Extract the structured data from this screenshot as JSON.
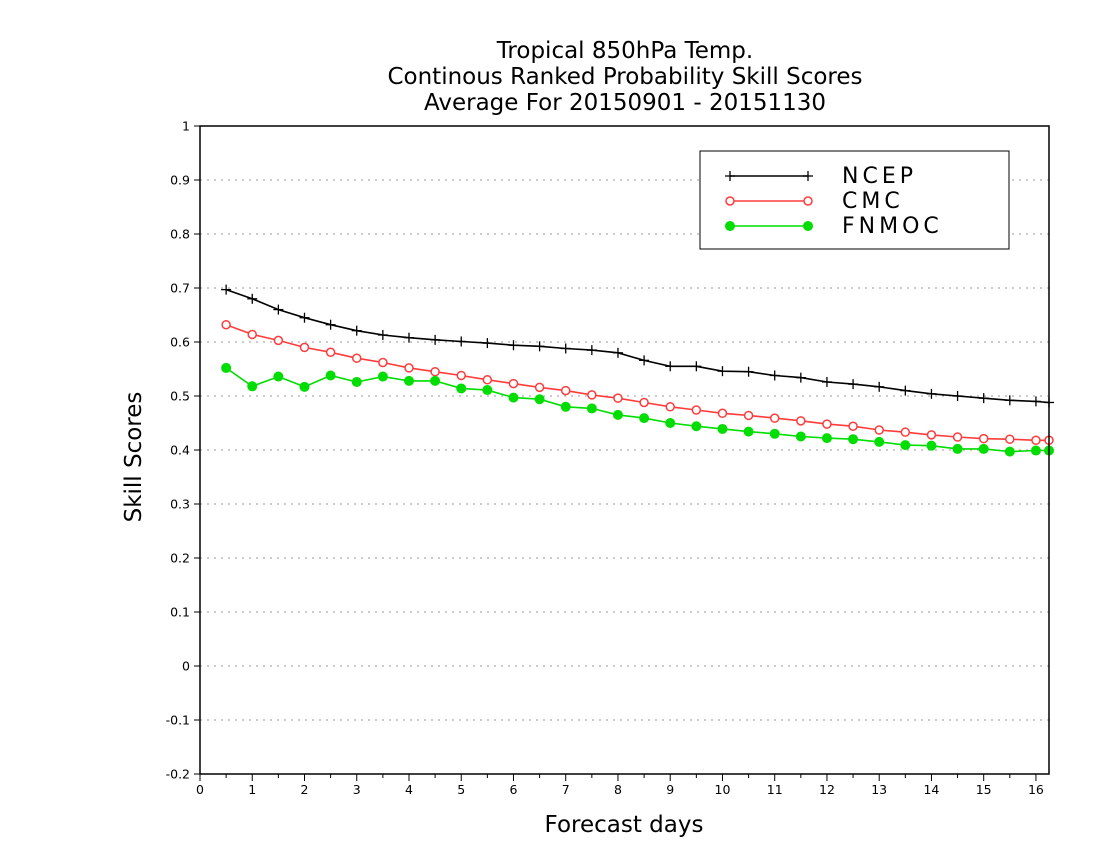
{
  "chart_data": {
    "type": "line",
    "title_lines": [
      "Tropical 850hPa Temp.",
      "Continous Ranked Probability Skill Scores",
      "Average For 20150901 - 20151130"
    ],
    "xlabel": "Forecast days",
    "ylabel": "Skill Scores",
    "xlim": [
      0,
      16.25
    ],
    "ylim": [
      -0.2,
      1
    ],
    "x_ticks": [
      0,
      1,
      2,
      3,
      4,
      5,
      6,
      7,
      8,
      9,
      10,
      11,
      12,
      13,
      14,
      15,
      16
    ],
    "y_ticks": [
      -0.2,
      -0.1,
      0,
      0.1,
      0.2,
      0.3,
      0.4,
      0.5,
      0.6,
      0.7,
      0.8,
      0.9,
      1
    ],
    "y_tick_labels": [
      "-0.2",
      "-0.1",
      "0",
      "0.1",
      "0.2",
      "0.3",
      "0.4",
      "0.5",
      "0.6",
      "0.7",
      "0.8",
      "0.9",
      "1"
    ],
    "grid": "horizontal dotted",
    "legend_position": "top-right",
    "x": [
      0.5,
      1,
      1.5,
      2,
      2.5,
      3,
      3.5,
      4,
      4.5,
      5,
      5.5,
      6,
      6.5,
      7,
      7.5,
      8,
      8.5,
      9,
      9.5,
      10,
      10.5,
      11,
      11.5,
      12,
      12.5,
      13,
      13.5,
      14,
      14.5,
      15,
      15.5,
      16,
      16.25
    ],
    "series": [
      {
        "name": "NCEP",
        "color": "#000000",
        "marker": "plus",
        "values": [
          0.697,
          0.68,
          0.66,
          0.645,
          0.632,
          0.621,
          0.613,
          0.608,
          0.604,
          0.601,
          0.598,
          0.594,
          0.592,
          0.588,
          0.585,
          0.58,
          0.566,
          0.555,
          0.555,
          0.546,
          0.545,
          0.538,
          0.534,
          0.526,
          0.522,
          0.517,
          0.51,
          0.504,
          0.5,
          0.496,
          0.492,
          0.49,
          0.488
        ]
      },
      {
        "name": "CMC",
        "color": "#ff3b3b",
        "marker": "open-circle",
        "values": [
          0.632,
          0.614,
          0.603,
          0.59,
          0.581,
          0.57,
          0.562,
          0.552,
          0.545,
          0.538,
          0.53,
          0.523,
          0.516,
          0.51,
          0.502,
          0.496,
          0.488,
          0.48,
          0.474,
          0.468,
          0.464,
          0.459,
          0.454,
          0.448,
          0.444,
          0.437,
          0.433,
          0.428,
          0.424,
          0.421,
          0.42,
          0.418,
          0.418
        ]
      },
      {
        "name": "FNMOC",
        "color": "#00dd00",
        "marker": "filled-circle",
        "values": [
          0.552,
          0.518,
          0.536,
          0.517,
          0.538,
          0.526,
          0.536,
          0.528,
          0.528,
          0.514,
          0.511,
          0.497,
          0.494,
          0.48,
          0.477,
          0.465,
          0.459,
          0.45,
          0.444,
          0.439,
          0.434,
          0.43,
          0.425,
          0.422,
          0.42,
          0.415,
          0.409,
          0.408,
          0.402,
          0.402,
          0.397,
          0.399,
          0.399
        ]
      }
    ]
  }
}
